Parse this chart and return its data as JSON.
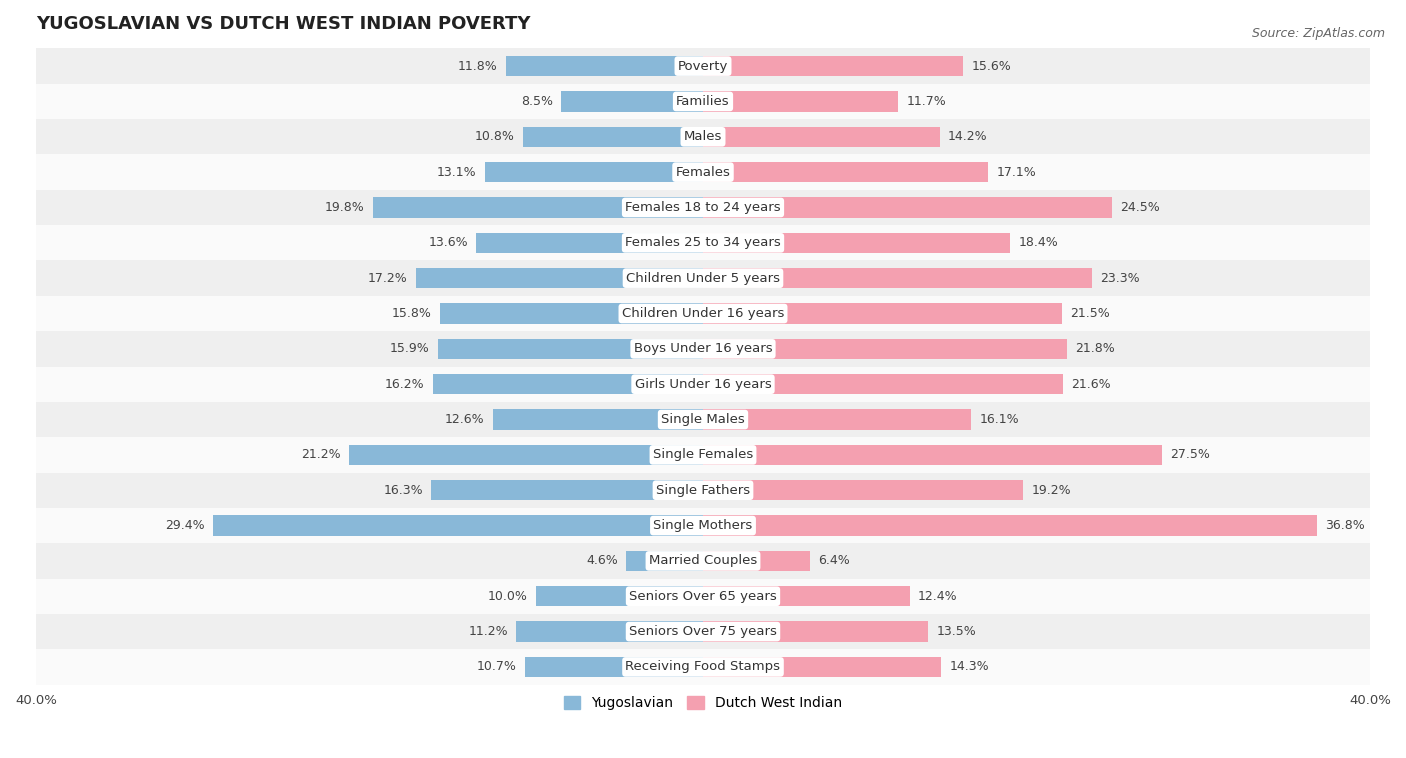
{
  "title": "YUGOSLAVIAN VS DUTCH WEST INDIAN POVERTY",
  "source": "Source: ZipAtlas.com",
  "categories": [
    "Poverty",
    "Families",
    "Males",
    "Females",
    "Females 18 to 24 years",
    "Females 25 to 34 years",
    "Children Under 5 years",
    "Children Under 16 years",
    "Boys Under 16 years",
    "Girls Under 16 years",
    "Single Males",
    "Single Females",
    "Single Fathers",
    "Single Mothers",
    "Married Couples",
    "Seniors Over 65 years",
    "Seniors Over 75 years",
    "Receiving Food Stamps"
  ],
  "yugoslavian": [
    11.8,
    8.5,
    10.8,
    13.1,
    19.8,
    13.6,
    17.2,
    15.8,
    15.9,
    16.2,
    12.6,
    21.2,
    16.3,
    29.4,
    4.6,
    10.0,
    11.2,
    10.7
  ],
  "dutch_west_indian": [
    15.6,
    11.7,
    14.2,
    17.1,
    24.5,
    18.4,
    23.3,
    21.5,
    21.8,
    21.6,
    16.1,
    27.5,
    19.2,
    36.8,
    6.4,
    12.4,
    13.5,
    14.3
  ],
  "yug_color": "#89b8d8",
  "dwi_color": "#f4a0b0",
  "yug_label": "Yugoslavian",
  "dwi_label": "Dutch West Indian",
  "xlim": 40.0,
  "bar_height": 0.58,
  "row_bg_odd": "#efefef",
  "row_bg_even": "#fafafa",
  "label_fontsize": 9.5,
  "value_fontsize": 9.0,
  "title_fontsize": 13,
  "source_fontsize": 9
}
